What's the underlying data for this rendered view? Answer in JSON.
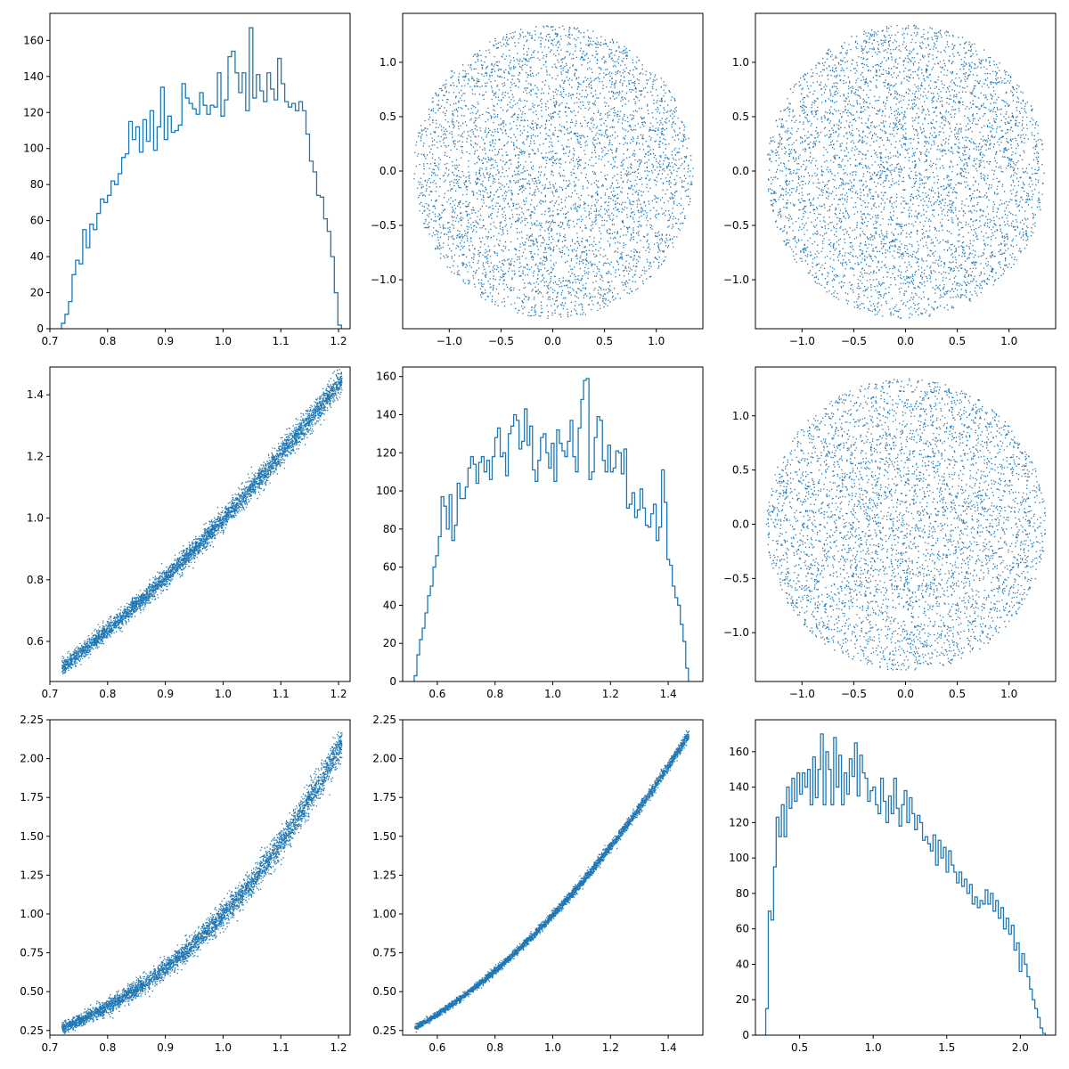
{
  "figure": {
    "layout": "3x3 corner plot",
    "accent_color": "#1f77b4"
  },
  "chart_data": [
    {
      "type": "histogram-step",
      "panel": "row1-col1",
      "xlim": [
        0.7,
        1.22
      ],
      "ylim": [
        0,
        175
      ],
      "xticks": [
        0.7,
        0.8,
        0.9,
        1.0,
        1.1,
        1.2
      ],
      "yticks": [
        0,
        20,
        40,
        60,
        80,
        100,
        120,
        140,
        160
      ],
      "bin_range": [
        0.72,
        1.205
      ],
      "peak": 167,
      "values": [
        3,
        8,
        15,
        30,
        38,
        36,
        55,
        45,
        58,
        55,
        64,
        72,
        70,
        74,
        82,
        80,
        86,
        95,
        97,
        115,
        105,
        112,
        98,
        116,
        104,
        121,
        99,
        112,
        134,
        105,
        118,
        109,
        110,
        113,
        136,
        128,
        125,
        122,
        119,
        131,
        124,
        119,
        124,
        123,
        142,
        118,
        127,
        151,
        154,
        142,
        131,
        142,
        121,
        167,
        128,
        141,
        132,
        126,
        142,
        133,
        127,
        150,
        136,
        126,
        123,
        125,
        121,
        126,
        121,
        108,
        93,
        87,
        74,
        73,
        61,
        54,
        40,
        20,
        2
      ],
      "color": "#1f77b4"
    },
    {
      "type": "scatter",
      "panel": "row1-col2",
      "xlim": [
        -1.45,
        1.45
      ],
      "ylim": [
        -1.45,
        1.45
      ],
      "xticks": [
        -1.0,
        -0.5,
        0.0,
        0.5,
        1.0
      ],
      "yticks": [
        -1.0,
        -0.5,
        0.0,
        0.5,
        1.0
      ],
      "distribution": "uniform disk",
      "center": [
        0,
        0
      ],
      "radius": 1.35,
      "point_count": 4500,
      "color": "#1f77b4"
    },
    {
      "type": "scatter",
      "panel": "row1-col3",
      "xlim": [
        -1.45,
        1.45
      ],
      "ylim": [
        -1.45,
        1.45
      ],
      "xticks": [
        -1.0,
        -0.5,
        0.0,
        0.5,
        1.0
      ],
      "yticks": [
        -1.0,
        -0.5,
        0.0,
        0.5,
        1.0
      ],
      "distribution": "uniform disk",
      "center": [
        0,
        0
      ],
      "radius": 1.35,
      "point_count": 4500,
      "color": "#1f77b4"
    },
    {
      "type": "scatter",
      "panel": "row2-col1",
      "xlim": [
        0.7,
        1.22
      ],
      "ylim": [
        0.47,
        1.49
      ],
      "xticks": [
        0.7,
        0.8,
        0.9,
        1.0,
        1.1,
        1.2
      ],
      "yticks": [
        0.6,
        0.8,
        1.0,
        1.2,
        1.4
      ],
      "distribution": "curved band",
      "x_range": [
        0.72,
        1.205
      ],
      "center_curve": "y = x^2",
      "band_halfwidth": [
        0.02,
        0.035
      ],
      "point_count": 4500,
      "color": "#1f77b4"
    },
    {
      "type": "histogram-step",
      "panel": "row2-col2",
      "xlim": [
        0.48,
        1.52
      ],
      "ylim": [
        0,
        165
      ],
      "xticks": [
        0.6,
        0.8,
        1.0,
        1.2,
        1.4
      ],
      "yticks": [
        0,
        20,
        40,
        60,
        80,
        100,
        120,
        140,
        160
      ],
      "bin_range": [
        0.52,
        1.47
      ],
      "peak": 159,
      "values": [
        3,
        14,
        22,
        28,
        36,
        45,
        50,
        60,
        66,
        76,
        97,
        92,
        80,
        98,
        74,
        82,
        104,
        96,
        96,
        102,
        112,
        118,
        114,
        104,
        115,
        118,
        110,
        116,
        106,
        118,
        128,
        133,
        118,
        120,
        108,
        130,
        134,
        140,
        137,
        122,
        126,
        143,
        124,
        134,
        111,
        105,
        116,
        128,
        130,
        120,
        112,
        125,
        105,
        132,
        125,
        121,
        118,
        126,
        137,
        118,
        110,
        133,
        148,
        158,
        159,
        106,
        110,
        128,
        139,
        137,
        116,
        110,
        124,
        110,
        112,
        121,
        120,
        109,
        122,
        91,
        93,
        99,
        86,
        90,
        101,
        91,
        82,
        81,
        88,
        93,
        74,
        81,
        111,
        94,
        64,
        61,
        50,
        44,
        40,
        30,
        21,
        7
      ],
      "color": "#1f77b4"
    },
    {
      "type": "scatter",
      "panel": "row2-col3",
      "xlim": [
        -1.45,
        1.45
      ],
      "ylim": [
        -1.45,
        1.45
      ],
      "xticks": [
        -1.0,
        -0.5,
        0.0,
        0.5,
        1.0
      ],
      "yticks": [
        -1.0,
        -0.5,
        0.0,
        0.5,
        1.0
      ],
      "distribution": "uniform disk",
      "center": [
        0,
        0
      ],
      "radius": 1.35,
      "point_count": 4500,
      "color": "#1f77b4"
    },
    {
      "type": "scatter",
      "panel": "row3-col1",
      "xlim": [
        0.7,
        1.22
      ],
      "ylim": [
        0.22,
        2.25
      ],
      "xticks": [
        0.7,
        0.8,
        0.9,
        1.0,
        1.1,
        1.2
      ],
      "yticks": [
        0.25,
        0.5,
        0.75,
        1.0,
        1.25,
        1.5,
        1.75,
        2.0,
        2.25
      ],
      "distribution": "curved band",
      "x_range": [
        0.72,
        1.205
      ],
      "center_curve": "y = x^4",
      "band_halfwidth": [
        0.03,
        0.09
      ],
      "point_count": 4500,
      "color": "#1f77b4"
    },
    {
      "type": "scatter",
      "panel": "row3-col2",
      "xlim": [
        0.48,
        1.52
      ],
      "ylim": [
        0.22,
        2.25
      ],
      "xticks": [
        0.6,
        0.8,
        1.0,
        1.2,
        1.4
      ],
      "yticks": [
        0.25,
        0.5,
        0.75,
        1.0,
        1.25,
        1.5,
        1.75,
        2.0,
        2.25
      ],
      "distribution": "curved band",
      "x_range": [
        0.52,
        1.47
      ],
      "center_curve": "y = x^2",
      "band_halfwidth": [
        0.015,
        0.03
      ],
      "point_count": 4500,
      "color": "#1f77b4"
    },
    {
      "type": "histogram-step",
      "panel": "row3-col3",
      "xlim": [
        0.2,
        2.24
      ],
      "ylim": [
        0,
        178
      ],
      "xticks": [
        0.5,
        1.0,
        1.5,
        2.0
      ],
      "yticks": [
        0,
        20,
        40,
        60,
        80,
        100,
        120,
        140,
        160
      ],
      "bin_range": [
        0.27,
        2.17
      ],
      "peak": 170,
      "values": [
        15,
        70,
        65,
        95,
        123,
        112,
        130,
        112,
        140,
        128,
        145,
        132,
        148,
        136,
        148,
        140,
        150,
        130,
        157,
        134,
        150,
        170,
        130,
        160,
        150,
        130,
        168,
        140,
        158,
        130,
        148,
        136,
        156,
        146,
        165,
        135,
        158,
        148,
        145,
        132,
        138,
        140,
        130,
        125,
        145,
        132,
        120,
        135,
        125,
        145,
        128,
        118,
        130,
        138,
        120,
        134,
        125,
        116,
        124,
        120,
        110,
        112,
        108,
        104,
        113,
        96,
        110,
        100,
        106,
        92,
        104,
        96,
        92,
        86,
        92,
        84,
        88,
        80,
        85,
        74,
        78,
        72,
        76,
        74,
        82,
        74,
        80,
        70,
        76,
        66,
        72,
        60,
        66,
        57,
        62,
        48,
        52,
        36,
        46,
        40,
        33,
        26,
        20,
        15,
        10,
        4,
        1
      ],
      "color": "#1f77b4"
    }
  ]
}
